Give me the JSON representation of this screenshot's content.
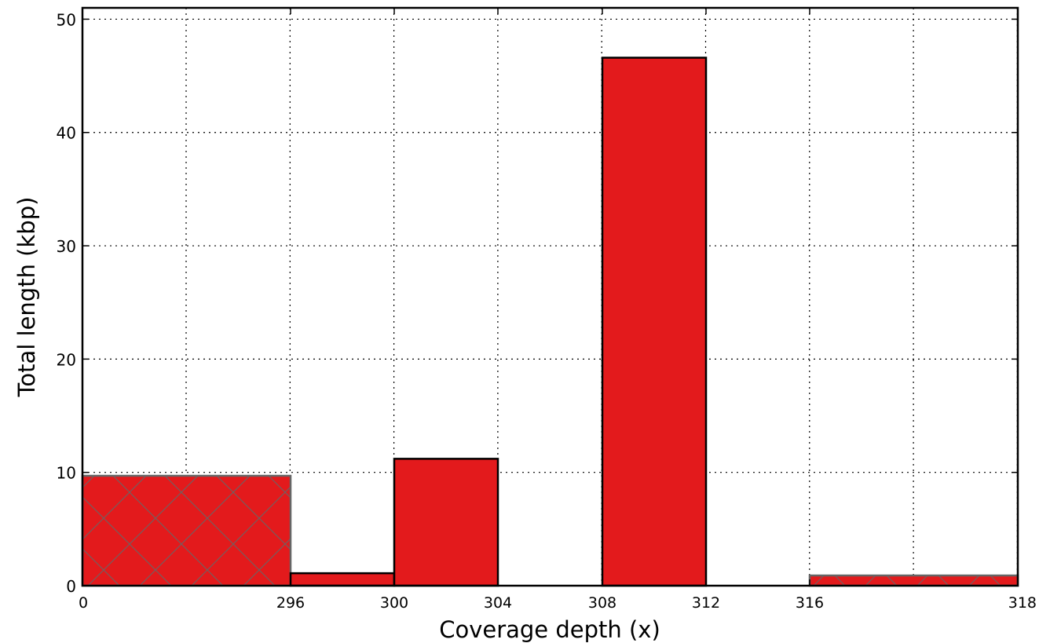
{
  "chart_data": {
    "type": "bar",
    "title": "",
    "xlabel": "Coverage depth (x)",
    "ylabel": "Total length (kbp)",
    "ylim": [
      0,
      51
    ],
    "grid": true,
    "x_tick_labels": [
      "0",
      "296",
      "300",
      "304",
      "308",
      "312",
      "316",
      "318"
    ],
    "y_ticks": [
      0,
      10,
      20,
      30,
      40,
      50
    ],
    "bars": [
      {
        "range": [
          "0",
          "296"
        ],
        "value": 9.7,
        "style": "hatched"
      },
      {
        "range": [
          "296",
          "300"
        ],
        "value": 1.1,
        "style": "solid"
      },
      {
        "range": [
          "300",
          "304"
        ],
        "value": 11.2,
        "style": "solid"
      },
      {
        "range": [
          "304",
          "308"
        ],
        "value": 0,
        "style": "solid"
      },
      {
        "range": [
          "308",
          "312"
        ],
        "value": 46.6,
        "style": "solid"
      },
      {
        "range": [
          "312",
          "316"
        ],
        "value": 0,
        "style": "solid"
      },
      {
        "range": [
          "316",
          "318"
        ],
        "value": 0.9,
        "style": "hatched"
      }
    ],
    "colors": {
      "bar_fill": "#e31a1c",
      "bar_edge": "#000000",
      "hatched_edge": "#666666",
      "grid": "#000000"
    }
  }
}
